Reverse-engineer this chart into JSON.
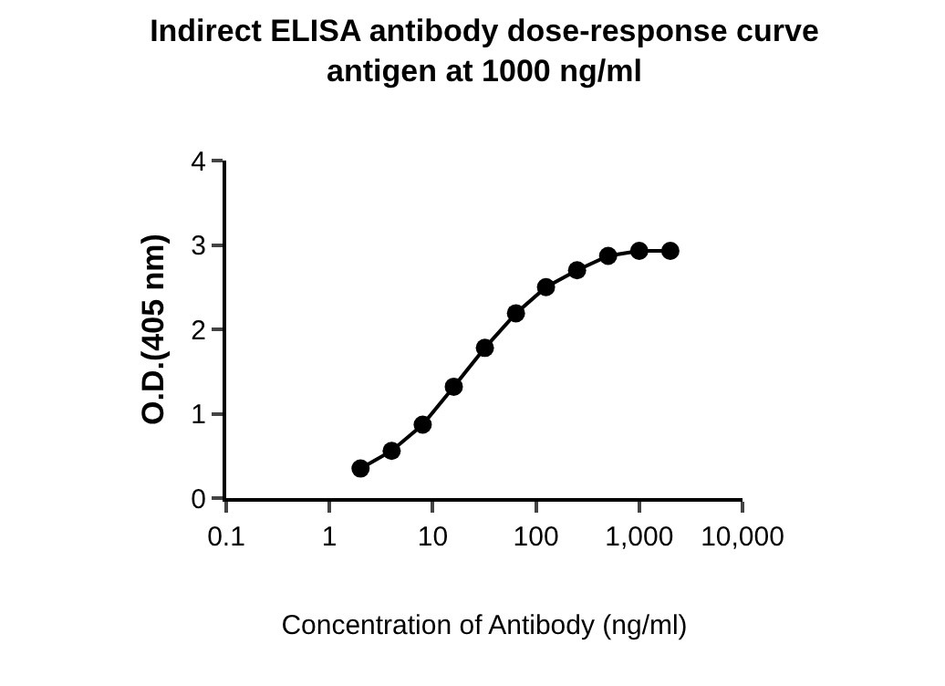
{
  "chart_data": {
    "type": "line",
    "title": "Indirect ELISA antibody dose-response curve\nantigen at 1000 ng/ml",
    "xlabel": "Concentration of Antibody (ng/ml)",
    "ylabel": "O.D.(405 nm)",
    "x": [
      2,
      4,
      8,
      16,
      32,
      64,
      125,
      250,
      500,
      1000,
      2000
    ],
    "series": [
      {
        "color": "#000000",
        "values": [
          0.35,
          0.56,
          0.87,
          1.32,
          1.78,
          2.19,
          2.5,
          2.7,
          2.87,
          2.93,
          2.93
        ]
      }
    ],
    "log": "x",
    "xlim": [
      0.1,
      10000
    ],
    "xticks": [
      0.1,
      1,
      10,
      100,
      {
        "value": 1000,
        "label": "1,000"
      },
      {
        "value": 10000,
        "label": "10,000"
      }
    ],
    "ylim": [
      0,
      4
    ],
    "yticks": [
      0,
      1,
      2,
      3,
      4
    ],
    "grid": false,
    "marker": "circle",
    "line_style": "solid"
  }
}
